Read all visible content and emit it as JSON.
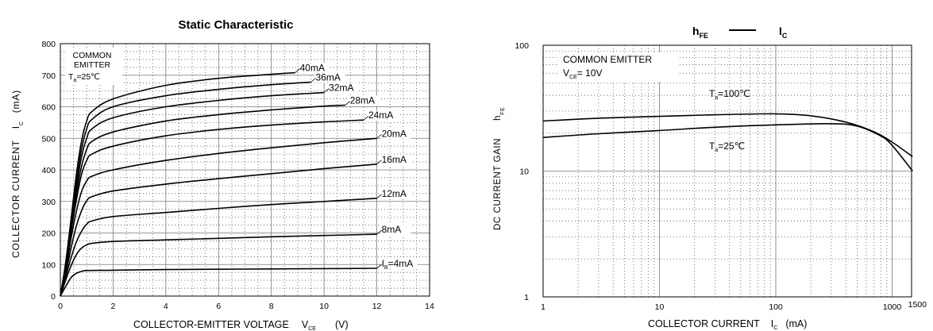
{
  "chart_data": [
    {
      "type": "line",
      "title": "Static Characteristic",
      "xlabel": "COLLECTOR-EMITTER VOLTAGE",
      "xlabel_symbol": "V",
      "xlabel_sub": "CE",
      "xlabel_unit": "(V)",
      "ylabel": "COLLECTOR CURRENT",
      "ylabel_symbol": "I",
      "ylabel_sub": "C",
      "ylabel_unit": "(mA)",
      "xlim": [
        0,
        14
      ],
      "ylim": [
        0,
        800
      ],
      "x_ticks": [
        0,
        2,
        4,
        6,
        8,
        10,
        12,
        14
      ],
      "y_ticks": [
        0,
        100,
        200,
        300,
        400,
        500,
        600,
        700,
        800
      ],
      "grid": true,
      "annotation": {
        "lines": [
          "COMMON",
          "EMITTER"
        ],
        "temp_symbol": "T",
        "temp_sub": "a",
        "temp_value": "=25℃"
      },
      "series": [
        {
          "name": "4mA",
          "label_prefix": "I",
          "label_sub": "B",
          "label_value": "=4mA",
          "points": [
            [
              0,
              0
            ],
            [
              0.2,
              30
            ],
            [
              0.4,
              58
            ],
            [
              0.6,
              72
            ],
            [
              0.8,
              78
            ],
            [
              1.0,
              81
            ],
            [
              2,
              82
            ],
            [
              4,
              84
            ],
            [
              6,
              85
            ],
            [
              8,
              86
            ],
            [
              10,
              87
            ],
            [
              12,
              88
            ]
          ]
        },
        {
          "name": "8mA",
          "label_value": "8mA",
          "points": [
            [
              0,
              0
            ],
            [
              0.2,
              50
            ],
            [
              0.4,
              95
            ],
            [
              0.6,
              130
            ],
            [
              0.8,
              152
            ],
            [
              1.0,
              162
            ],
            [
              1.2,
              167
            ],
            [
              2,
              173
            ],
            [
              4,
              178
            ],
            [
              6,
              183
            ],
            [
              8,
              188
            ],
            [
              10,
              192
            ],
            [
              12,
              196
            ]
          ]
        },
        {
          "name": "12mA",
          "label_value": "12mA",
          "points": [
            [
              0,
              0
            ],
            [
              0.2,
              60
            ],
            [
              0.4,
              120
            ],
            [
              0.6,
              170
            ],
            [
              0.8,
              205
            ],
            [
              1.0,
              228
            ],
            [
              1.2,
              238
            ],
            [
              2,
              252
            ],
            [
              4,
              265
            ],
            [
              6,
              278
            ],
            [
              8,
              290
            ],
            [
              10,
              300
            ],
            [
              12,
              310
            ]
          ]
        },
        {
          "name": "16mA",
          "label_value": "16mA",
          "points": [
            [
              0,
              0
            ],
            [
              0.2,
              70
            ],
            [
              0.4,
              150
            ],
            [
              0.6,
              220
            ],
            [
              0.8,
              270
            ],
            [
              1.0,
              302
            ],
            [
              1.2,
              315
            ],
            [
              2,
              333
            ],
            [
              4,
              355
            ],
            [
              6,
              372
            ],
            [
              8,
              388
            ],
            [
              10,
              404
            ],
            [
              12,
              418
            ]
          ]
        },
        {
          "name": "20mA",
          "label_value": "20mA",
          "points": [
            [
              0,
              0
            ],
            [
              0.2,
              80
            ],
            [
              0.4,
              180
            ],
            [
              0.6,
              265
            ],
            [
              0.8,
              330
            ],
            [
              1.0,
              365
            ],
            [
              1.2,
              380
            ],
            [
              2,
              400
            ],
            [
              4,
              430
            ],
            [
              6,
              452
            ],
            [
              8,
              470
            ],
            [
              10,
              486
            ],
            [
              12,
              500
            ]
          ]
        },
        {
          "name": "24mA",
          "label_value": "24mA",
          "points": [
            [
              0,
              0
            ],
            [
              0.2,
              85
            ],
            [
              0.4,
              200
            ],
            [
              0.6,
              300
            ],
            [
              0.8,
              385
            ],
            [
              1.0,
              430
            ],
            [
              1.2,
              450
            ],
            [
              2,
              475
            ],
            [
              4,
              508
            ],
            [
              6,
              528
            ],
            [
              8,
              542
            ],
            [
              10,
              552
            ],
            [
              11.5,
              558
            ]
          ]
        },
        {
          "name": "28mA",
          "label_value": "28mA",
          "points": [
            [
              0,
              0
            ],
            [
              0.2,
              90
            ],
            [
              0.4,
              210
            ],
            [
              0.6,
              320
            ],
            [
              0.8,
              410
            ],
            [
              1.0,
              465
            ],
            [
              1.2,
              490
            ],
            [
              2,
              520
            ],
            [
              4,
              555
            ],
            [
              6,
              575
            ],
            [
              8,
              590
            ],
            [
              10,
              602
            ],
            [
              10.8,
              605
            ]
          ]
        },
        {
          "name": "32mA",
          "label_value": "32mA",
          "points": [
            [
              0,
              0
            ],
            [
              0.2,
              95
            ],
            [
              0.4,
              220
            ],
            [
              0.6,
              340
            ],
            [
              0.8,
              440
            ],
            [
              1.0,
              500
            ],
            [
              1.2,
              530
            ],
            [
              2,
              565
            ],
            [
              4,
              600
            ],
            [
              6,
              620
            ],
            [
              8,
              635
            ],
            [
              10,
              645
            ]
          ]
        },
        {
          "name": "36mA",
          "label_value": "36mA",
          "points": [
            [
              0,
              0
            ],
            [
              0.2,
              100
            ],
            [
              0.4,
              230
            ],
            [
              0.6,
              360
            ],
            [
              0.8,
              465
            ],
            [
              1.0,
              530
            ],
            [
              1.2,
              560
            ],
            [
              2,
              600
            ],
            [
              4,
              635
            ],
            [
              6,
              655
            ],
            [
              8,
              670
            ],
            [
              9.5,
              678
            ]
          ]
        },
        {
          "name": "40mA",
          "label_value": "40mA",
          "points": [
            [
              0,
              0
            ],
            [
              0.2,
              105
            ],
            [
              0.4,
              240
            ],
            [
              0.6,
              380
            ],
            [
              0.8,
              490
            ],
            [
              1.0,
              555
            ],
            [
              1.2,
              585
            ],
            [
              2,
              625
            ],
            [
              4,
              668
            ],
            [
              6,
              690
            ],
            [
              8,
              703
            ],
            [
              8.9,
              708
            ]
          ]
        }
      ]
    },
    {
      "type": "line",
      "title_left": "h",
      "title_left_sub": "FE",
      "title_right": "I",
      "title_right_sub": "C",
      "xlabel": "COLLECTOR CURRENT",
      "xlabel_symbol": "I",
      "xlabel_sub": "C",
      "xlabel_unit": "(mA)",
      "ylabel": "DC CURRENT GAIN",
      "ylabel_symbol": "h",
      "ylabel_sub": "FE",
      "x_scale": "log",
      "y_scale": "log",
      "xlim": [
        1,
        1500
      ],
      "ylim": [
        1,
        100
      ],
      "x_ticks": [
        "1",
        "10",
        "100",
        "1000",
        "1500"
      ],
      "y_ticks": [
        "1",
        "10",
        "100"
      ],
      "grid": true,
      "annotation": {
        "line1": "COMMON EMITTER",
        "vce_symbol": "V",
        "vce_sub": "CE",
        "vce_value": "= 10V"
      },
      "series": [
        {
          "name": "Ta=100℃",
          "label_prefix": "T",
          "label_sub": "a",
          "label_value": "=100℃",
          "points": [
            [
              1,
              25
            ],
            [
              3,
              26.3
            ],
            [
              10,
              27.2
            ],
            [
              30,
              28
            ],
            [
              100,
              28.5
            ],
            [
              200,
              27.5
            ],
            [
              400,
              24.5
            ],
            [
              700,
              20.5
            ],
            [
              1000,
              17
            ],
            [
              1500,
              13
            ]
          ]
        },
        {
          "name": "Ta=25℃",
          "label_prefix": "T",
          "label_sub": "a",
          "label_value": "=25℃",
          "points": [
            [
              1,
              18.5
            ],
            [
              3,
              19.8
            ],
            [
              10,
              21
            ],
            [
              30,
              22.3
            ],
            [
              100,
              23.3
            ],
            [
              300,
              23.8
            ],
            [
              500,
              22.8
            ],
            [
              800,
              19
            ],
            [
              1000,
              16
            ],
            [
              1500,
              10
            ]
          ]
        }
      ]
    }
  ]
}
